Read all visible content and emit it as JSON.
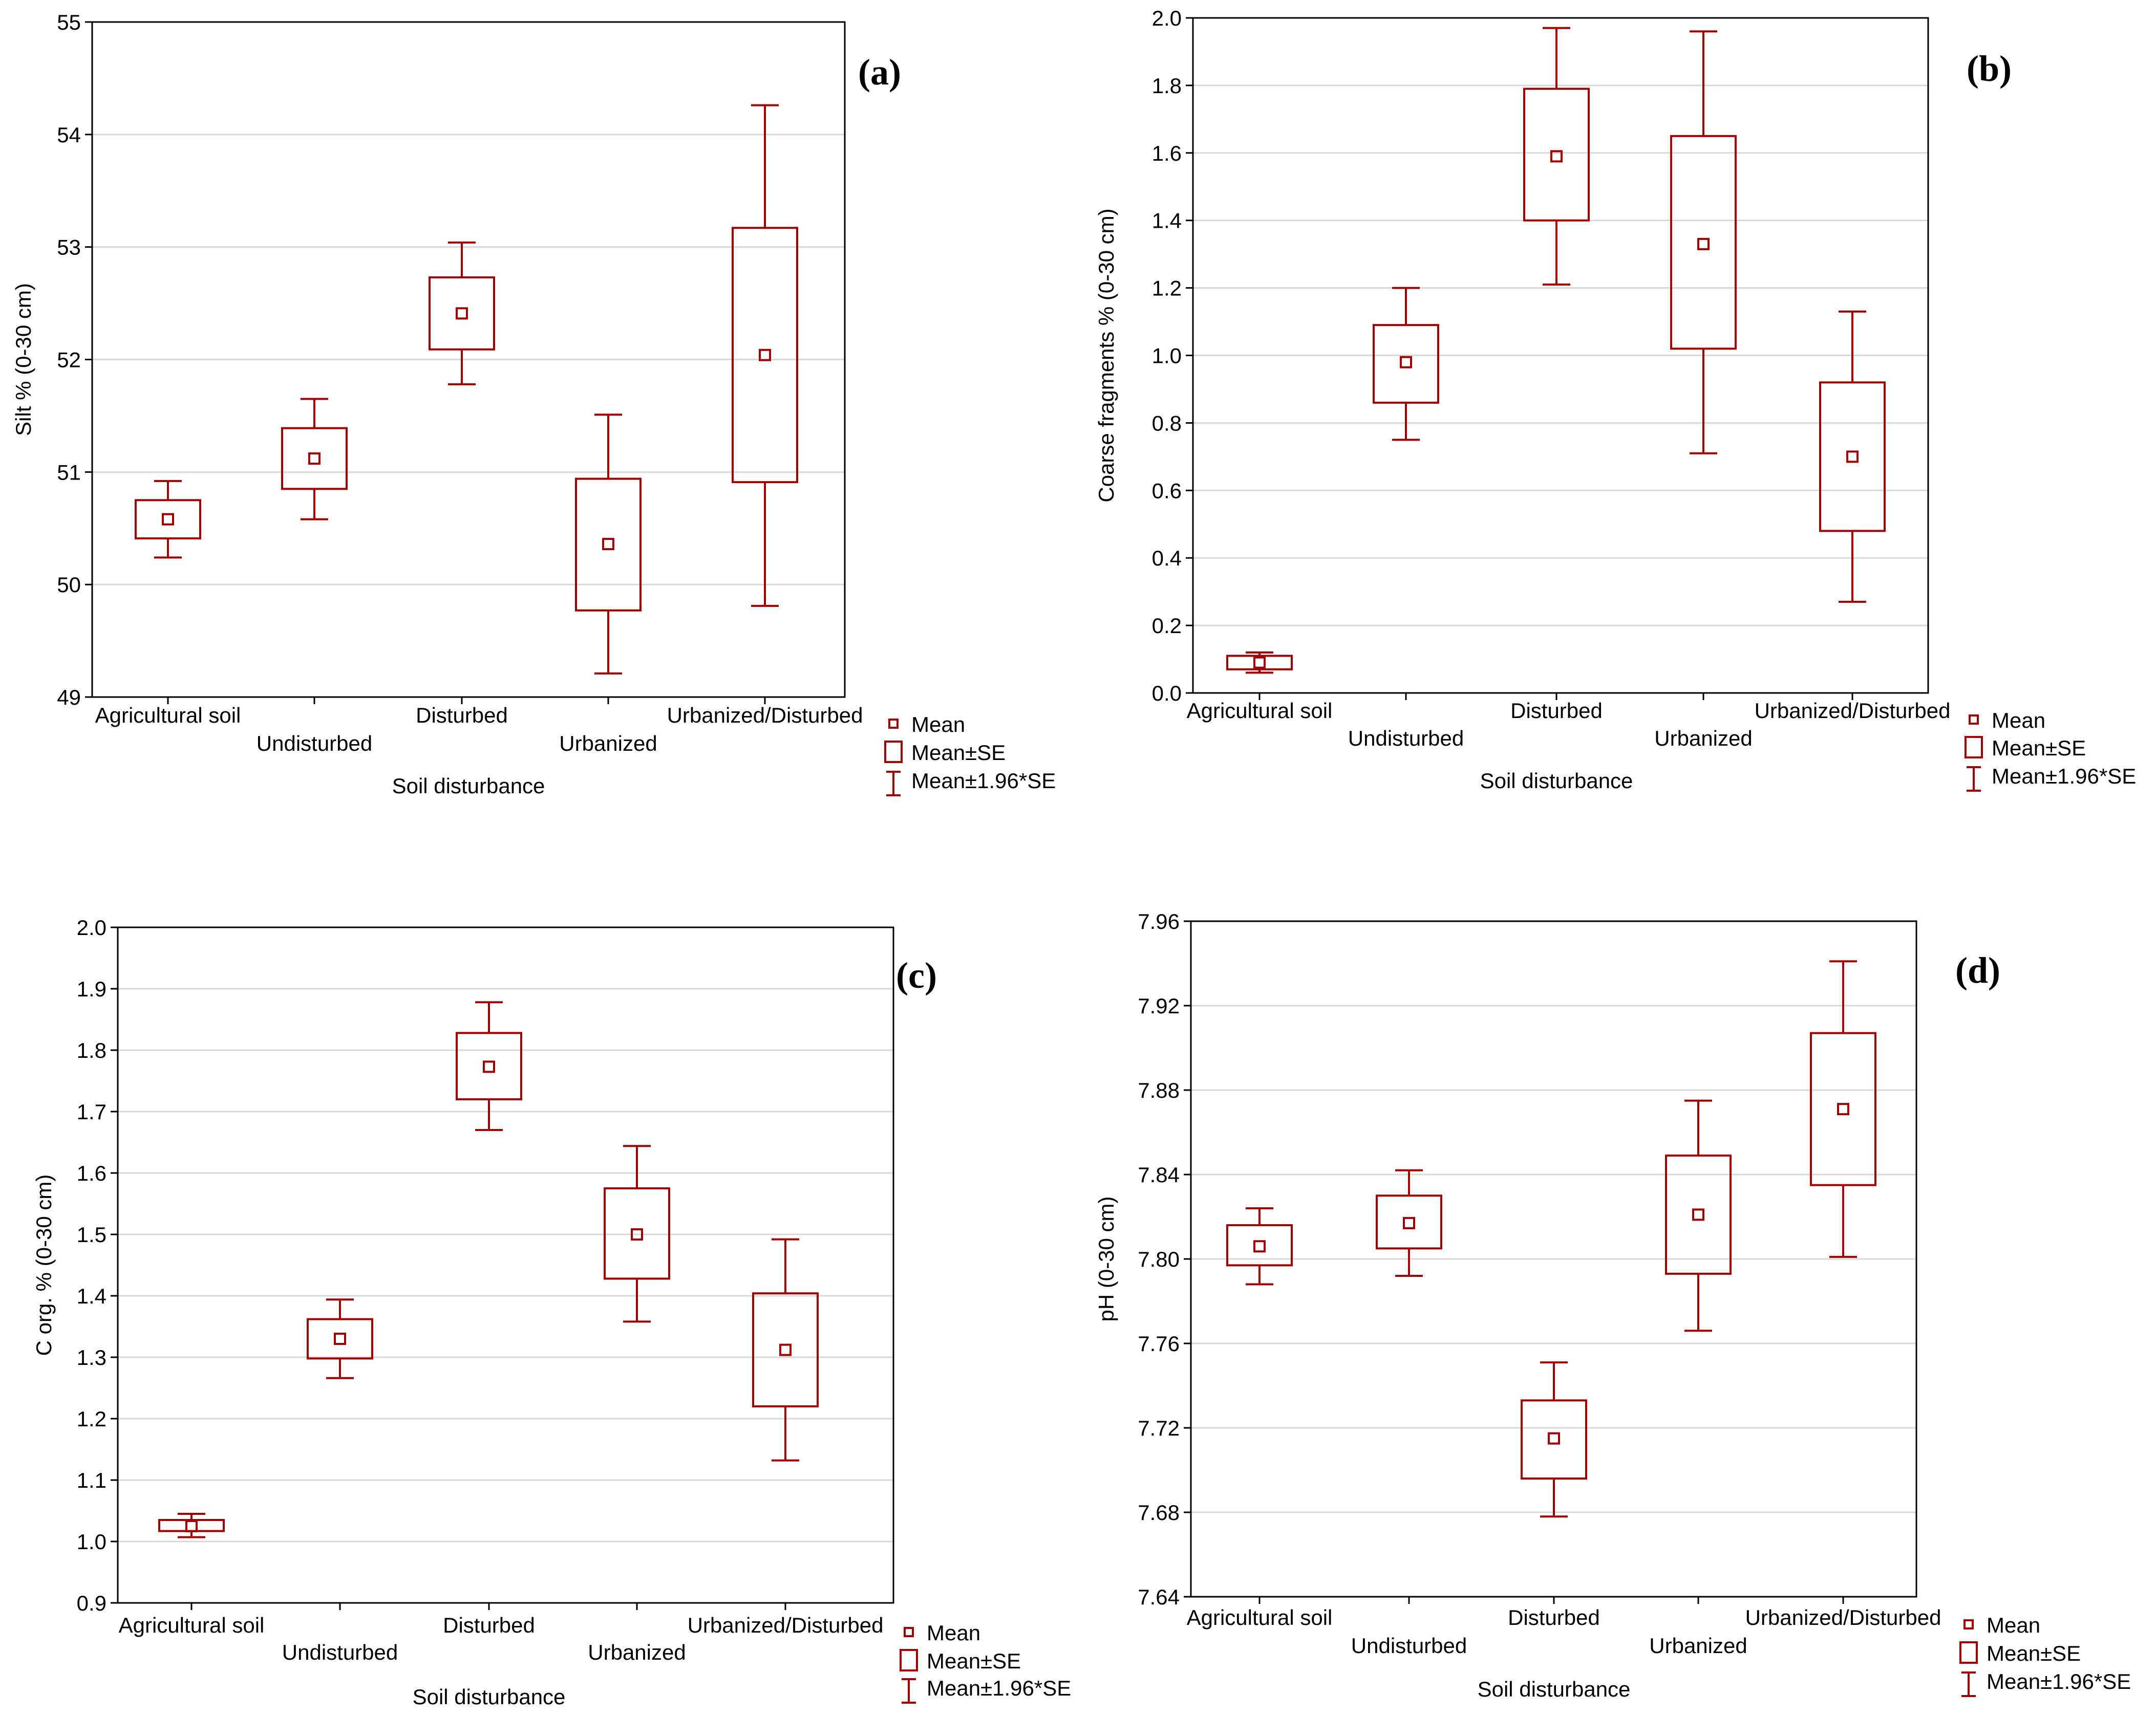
{
  "colors": {
    "series": "#a00000",
    "grid": "#d8d8d8",
    "frame": "#000000"
  },
  "legend": {
    "mean": "Mean",
    "se": "Mean±SE",
    "ci": "Mean±1.96*SE"
  },
  "chart_data": [
    {
      "type": "box",
      "panel": "(a)",
      "xlabel": "Soil disturbance",
      "ylabel": "Silt % (0-30 cm)",
      "ylim": [
        49,
        55
      ],
      "yticks": [
        49,
        50,
        51,
        52,
        53,
        54,
        55
      ],
      "ytick_labels": [
        "49",
        "50",
        "51",
        "52",
        "53",
        "54",
        "55"
      ],
      "categories": [
        "Agricultural soil",
        "Undisturbed",
        "Disturbed",
        "Urbanized",
        "Urbanized/Disturbed"
      ],
      "mean": [
        50.58,
        51.12,
        52.41,
        50.36,
        52.04
      ],
      "se_low": [
        50.41,
        50.85,
        52.09,
        49.77,
        50.91
      ],
      "se_high": [
        50.75,
        51.39,
        52.73,
        50.94,
        53.17
      ],
      "ci_low": [
        50.24,
        50.58,
        51.78,
        49.21,
        49.81
      ],
      "ci_high": [
        50.92,
        51.65,
        53.04,
        51.51,
        54.26
      ]
    },
    {
      "type": "box",
      "panel": "(b)",
      "xlabel": "Soil disturbance",
      "ylabel": "Coarse fragments % (0-30 cm)",
      "ylim": [
        0,
        2
      ],
      "yticks": [
        0,
        0.2,
        0.4,
        0.6,
        0.8,
        1.0,
        1.2,
        1.4,
        1.6,
        1.8,
        2.0
      ],
      "ytick_labels": [
        "0.0",
        "0.2",
        "0.4",
        "0.6",
        "0.8",
        "1.0",
        "1.2",
        "1.4",
        "1.6",
        "1.8",
        "2.0"
      ],
      "categories": [
        "Agricultural soil",
        "Undisturbed",
        "Disturbed",
        "Urbanized",
        "Urbanized/Disturbed"
      ],
      "mean": [
        0.09,
        0.98,
        1.59,
        1.33,
        0.7
      ],
      "se_low": [
        0.07,
        0.86,
        1.4,
        1.02,
        0.48
      ],
      "se_high": [
        0.11,
        1.09,
        1.79,
        1.65,
        0.92
      ],
      "ci_low": [
        0.06,
        0.75,
        1.21,
        0.71,
        0.27
      ],
      "ci_high": [
        0.12,
        1.2,
        1.97,
        1.96,
        1.13
      ]
    },
    {
      "type": "box",
      "panel": "(c)",
      "xlabel": "Soil disturbance",
      "ylabel": "C org. % (0-30 cm)",
      "ylim": [
        0.9,
        2.0
      ],
      "yticks": [
        0.9,
        1.0,
        1.1,
        1.2,
        1.3,
        1.4,
        1.5,
        1.6,
        1.7,
        1.8,
        1.9,
        2.0
      ],
      "ytick_labels": [
        "0.9",
        "1.0",
        "1.1",
        "1.2",
        "1.3",
        "1.4",
        "1.5",
        "1.6",
        "1.7",
        "1.8",
        "1.9",
        "2.0"
      ],
      "categories": [
        "Agricultural soil",
        "Undisturbed",
        "Disturbed",
        "Urbanized",
        "Urbanized/Disturbed"
      ],
      "mean": [
        1.025,
        1.33,
        1.773,
        1.5,
        1.312
      ],
      "se_low": [
        1.017,
        1.298,
        1.72,
        1.428,
        1.22
      ],
      "se_high": [
        1.035,
        1.362,
        1.828,
        1.575,
        1.404
      ],
      "ci_low": [
        1.007,
        1.266,
        1.67,
        1.358,
        1.132
      ],
      "ci_high": [
        1.045,
        1.394,
        1.878,
        1.644,
        1.492
      ]
    },
    {
      "type": "box",
      "panel": "(d)",
      "xlabel": "Soil disturbance",
      "ylabel": "pH (0-30 cm)",
      "ylim": [
        7.64,
        7.96
      ],
      "yticks": [
        7.64,
        7.68,
        7.72,
        7.76,
        7.8,
        7.84,
        7.88,
        7.92,
        7.96
      ],
      "ytick_labels": [
        "7.64",
        "7.68",
        "7.72",
        "7.76",
        "7.80",
        "7.84",
        "7.88",
        "7.92",
        "7.96"
      ],
      "categories": [
        "Agricultural soil",
        "Undisturbed",
        "Disturbed",
        "Urbanized",
        "Urbanized/Disturbed"
      ],
      "mean": [
        7.806,
        7.817,
        7.715,
        7.821,
        7.871
      ],
      "se_low": [
        7.797,
        7.805,
        7.696,
        7.793,
        7.835
      ],
      "se_high": [
        7.816,
        7.83,
        7.733,
        7.849,
        7.907
      ],
      "ci_low": [
        7.788,
        7.792,
        7.678,
        7.766,
        7.801
      ],
      "ci_high": [
        7.824,
        7.842,
        7.751,
        7.875,
        7.941
      ]
    }
  ]
}
